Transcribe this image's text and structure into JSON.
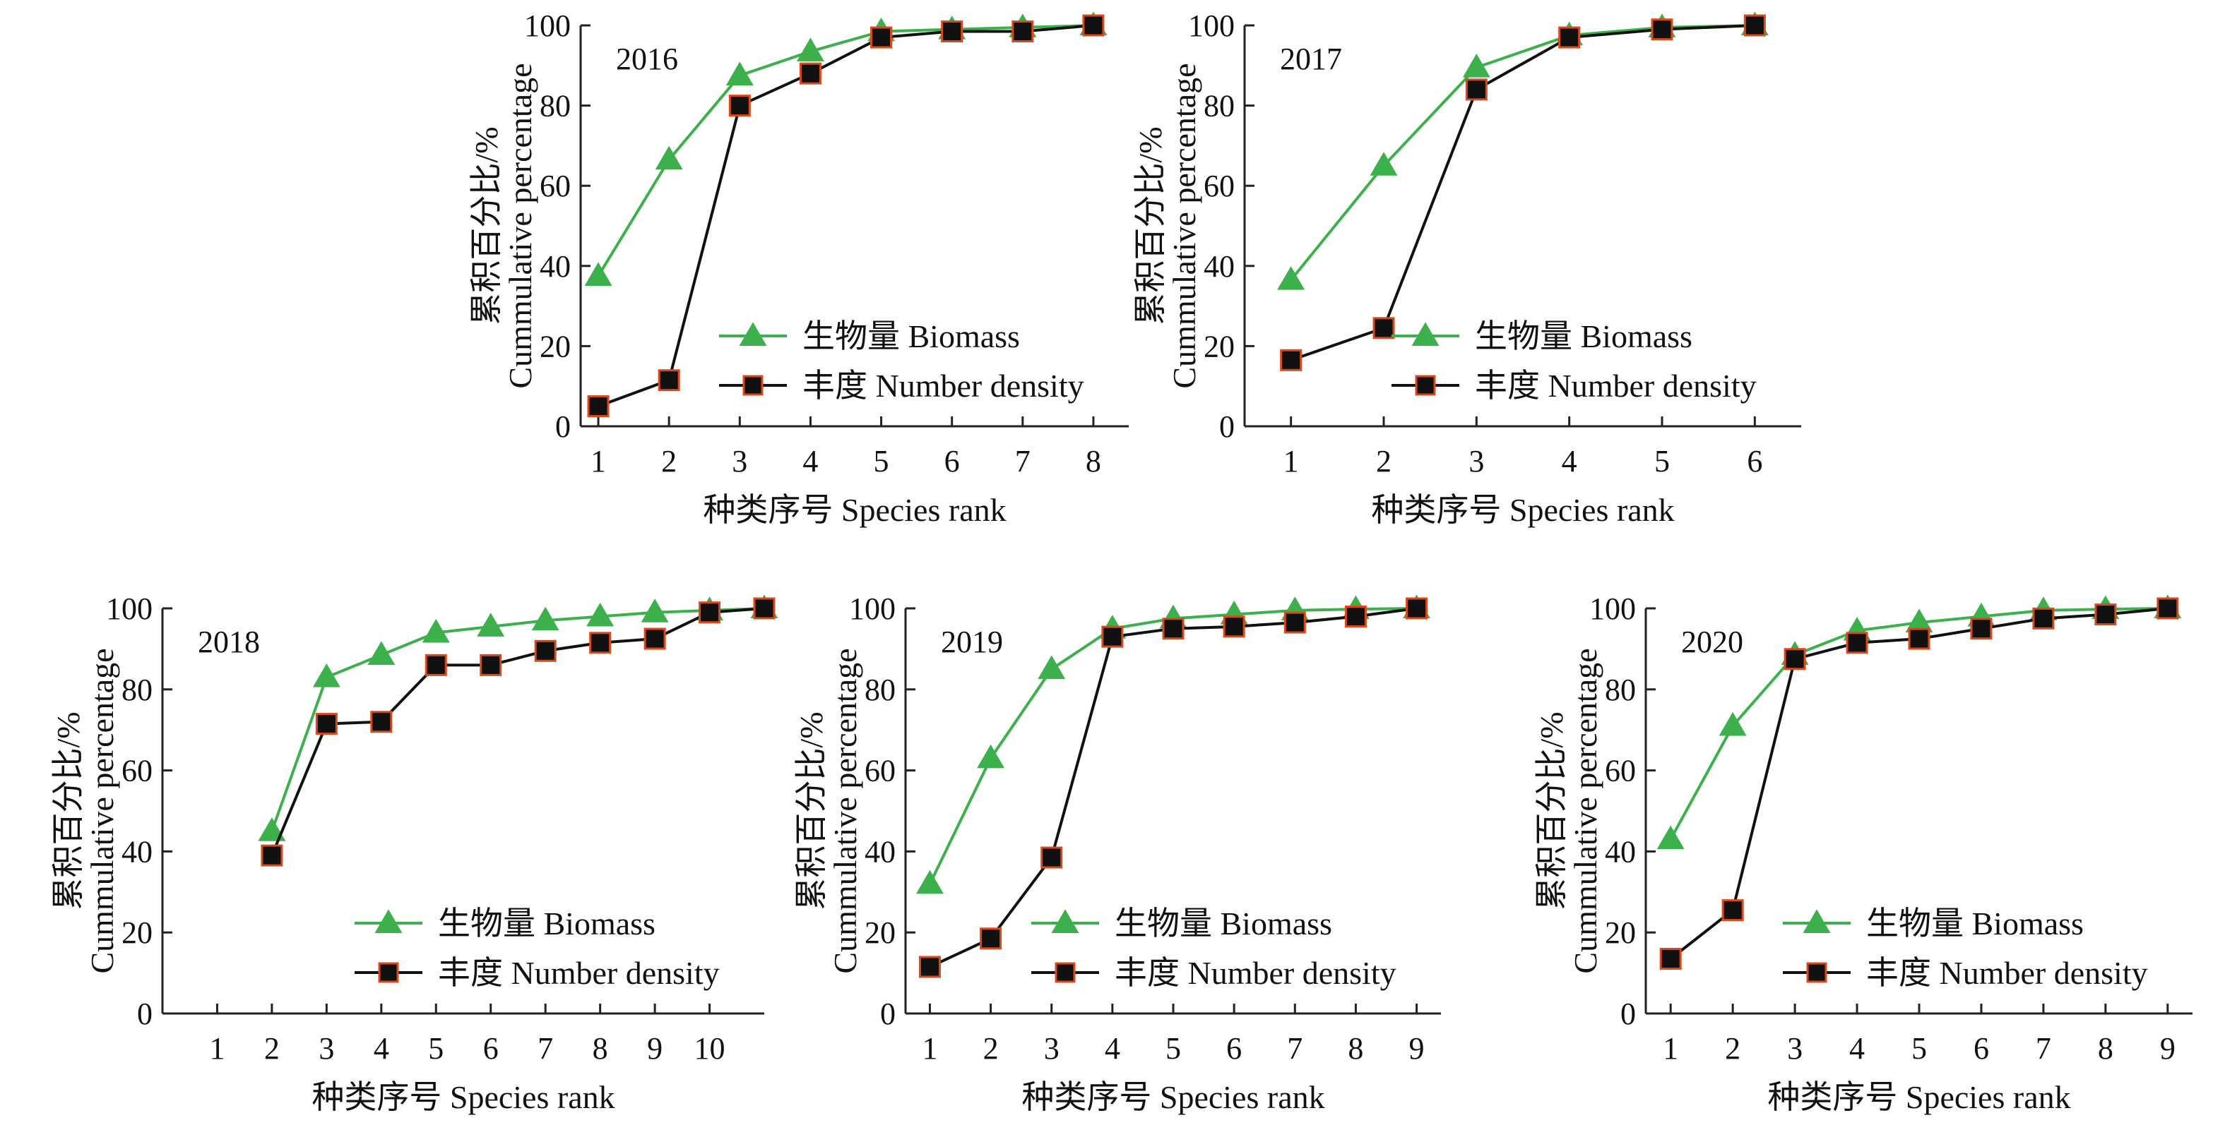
{
  "colors": {
    "biomass": "#3cb04b",
    "density_line": "#111111",
    "density_fill": "#111111",
    "density_edge": "#d9491a",
    "axis": "#222222"
  },
  "chart_data": [
    {
      "type": "line",
      "panel_label": "2016",
      "xlabel": "种类序号 Species rank",
      "ylabel_cn": "累积百分比/%",
      "ylabel_en": "Cummulative percentage",
      "x_ticks": [
        1,
        2,
        3,
        4,
        5,
        6,
        7,
        8
      ],
      "xlim": [
        0.75,
        8.5
      ],
      "ylim": [
        0,
        100
      ],
      "y_ticks": [
        0,
        20,
        40,
        60,
        80,
        100
      ],
      "legend": "lower-right",
      "series": [
        {
          "name": "生物量 Biomass",
          "marker": "triangle",
          "x": [
            1,
            2,
            3,
            4,
            5,
            6,
            7,
            8
          ],
          "y": [
            37.5,
            66.5,
            87.5,
            93.5,
            98.5,
            99,
            99.5,
            100
          ]
        },
        {
          "name": "丰度 Number density",
          "marker": "square",
          "x": [
            1,
            2,
            3,
            4,
            5,
            6,
            7,
            8
          ],
          "y": [
            5,
            11.5,
            80,
            88,
            97,
            98.5,
            98.5,
            100
          ]
        }
      ]
    },
    {
      "type": "line",
      "panel_label": "2017",
      "xlabel": "种类序号 Species rank",
      "ylabel_cn": "累积百分比/%",
      "ylabel_en": "Cummulative percentage",
      "x_ticks": [
        1,
        2,
        3,
        4,
        5,
        6
      ],
      "xlim": [
        0.5,
        6.5
      ],
      "ylim": [
        0,
        100
      ],
      "y_ticks": [
        0,
        20,
        40,
        60,
        80,
        100
      ],
      "legend": "lower-right",
      "series": [
        {
          "name": "生物量 Biomass",
          "marker": "triangle",
          "x": [
            1,
            2,
            3,
            4,
            5,
            6
          ],
          "y": [
            36.5,
            65,
            89.5,
            97.5,
            99.5,
            100
          ]
        },
        {
          "name": "丰度 Number density",
          "marker": "square",
          "x": [
            1,
            2,
            3,
            4,
            5,
            6
          ],
          "y": [
            16.5,
            24.5,
            84,
            97,
            99,
            100
          ]
        }
      ]
    },
    {
      "type": "line",
      "panel_label": "2018",
      "xlabel": "种类序号 Species rank",
      "ylabel_cn": "累积百分比/%",
      "ylabel_en": "Cummulative percentage",
      "x_ticks": [
        1,
        2,
        3,
        4,
        5,
        6,
        7,
        8,
        9,
        10
      ],
      "xlim": [
        0,
        11
      ],
      "ylim": [
        0,
        100
      ],
      "y_ticks": [
        0,
        20,
        40,
        60,
        80,
        100
      ],
      "legend": "lower-right",
      "series": [
        {
          "name": "生物量 Biomass",
          "marker": "triangle",
          "x": [
            2,
            3,
            4,
            5,
            6,
            7,
            8,
            9,
            10,
            11
          ],
          "y": [
            45,
            83,
            88.5,
            94,
            95.5,
            97,
            98,
            99,
            99.5,
            100
          ]
        },
        {
          "name": "丰度 Number density",
          "marker": "square",
          "x": [
            2,
            3,
            4,
            5,
            6,
            7,
            8,
            9,
            10,
            11
          ],
          "y": [
            39,
            71.5,
            72,
            86,
            86,
            89.5,
            91.5,
            92.5,
            99,
            100
          ]
        }
      ]
    },
    {
      "type": "line",
      "panel_label": "2019",
      "xlabel": "种类序号 Species rank",
      "ylabel_cn": "累积百分比/%",
      "ylabel_en": "Cummulative percentage",
      "x_ticks": [
        1,
        2,
        3,
        4,
        5,
        6,
        7,
        8,
        9
      ],
      "xlim": [
        0.6,
        9.4
      ],
      "ylim": [
        0,
        100
      ],
      "y_ticks": [
        0,
        20,
        40,
        60,
        80,
        100
      ],
      "legend": "lower-right",
      "series": [
        {
          "name": "生物量 Biomass",
          "marker": "triangle",
          "x": [
            1,
            2,
            3,
            4,
            5,
            6,
            7,
            8,
            9
          ],
          "y": [
            32,
            63,
            85,
            95,
            97.5,
            98.5,
            99.5,
            99.8,
            100
          ]
        },
        {
          "name": "丰度 Number density",
          "marker": "square",
          "x": [
            1,
            2,
            3,
            4,
            5,
            6,
            7,
            8,
            9
          ],
          "y": [
            11.5,
            18.5,
            38.5,
            93,
            95,
            95.5,
            96.5,
            98,
            100
          ]
        }
      ]
    },
    {
      "type": "line",
      "panel_label": "2020",
      "xlabel": "种类序号 Species rank",
      "ylabel_cn": "累积百分比/%",
      "ylabel_en": "Cummulative percentage",
      "x_ticks": [
        1,
        2,
        3,
        4,
        5,
        6,
        7,
        8,
        9
      ],
      "xlim": [
        0.6,
        9.4
      ],
      "ylim": [
        0,
        100
      ],
      "y_ticks": [
        0,
        20,
        40,
        60,
        80,
        100
      ],
      "legend": "lower-right",
      "series": [
        {
          "name": "生物量 Biomass",
          "marker": "triangle",
          "x": [
            1,
            2,
            3,
            4,
            5,
            6,
            7,
            8,
            9
          ],
          "y": [
            43,
            71,
            88.5,
            94.5,
            96.5,
            98,
            99.5,
            99.8,
            100
          ]
        },
        {
          "name": "丰度 Number density",
          "marker": "square",
          "x": [
            1,
            2,
            3,
            4,
            5,
            6,
            7,
            8,
            9
          ],
          "y": [
            13.5,
            25.5,
            87.5,
            91.5,
            92.5,
            95,
            97.5,
            98.5,
            100
          ]
        }
      ]
    }
  ]
}
